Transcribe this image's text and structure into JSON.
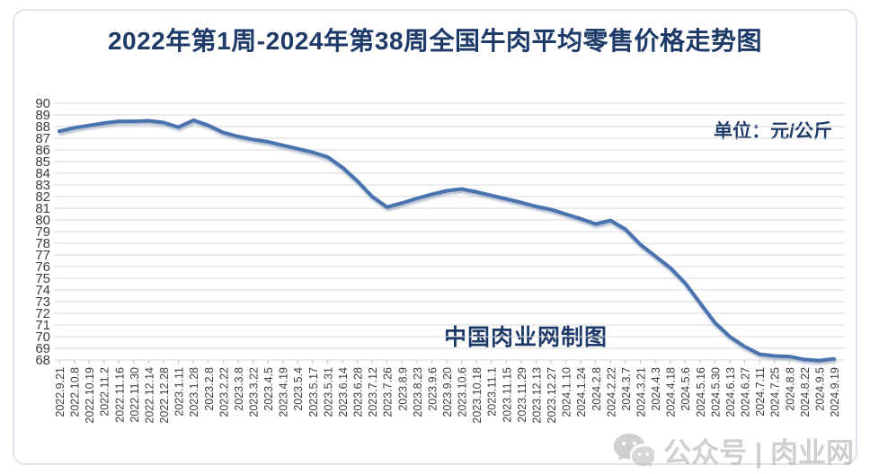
{
  "title": "2022年第1周-2024年第38周全国牛肉平均零售价格走势图",
  "unit_label": "单位：元/公斤",
  "watermark_center": "中国肉业网制图",
  "watermark_bottom": {
    "icon": "wechat-icon",
    "text": "公众号 | 肉业网"
  },
  "colors": {
    "title": "#1d3a68",
    "line": "#4a73ae",
    "grid": "#d9d9d9",
    "axis_text": "#3d3d3d",
    "watermark_gray": "#a9a9a9"
  },
  "chart_data": {
    "type": "line",
    "title": "2022年第1周-2024年第38周全国牛肉平均零售价格走势图",
    "ylabel": "元/公斤",
    "xlabel": "",
    "ylim": [
      68,
      90
    ],
    "ytick_step": 1,
    "grid": true,
    "legend": "none",
    "categories": [
      "2022.9.21",
      "2022.10.8",
      "2022.10.19",
      "2022.11.2",
      "2022.11.16",
      "2022.11.30",
      "2022.12.14",
      "2022.12.28",
      "2023.1.11",
      "2023.1.28",
      "2023.2.8",
      "2023.2.22",
      "2023.3.8",
      "2023.3.22",
      "2023.4.5",
      "2023.4.19",
      "2023.5.4",
      "2023.5.17",
      "2023.5.31",
      "2023.6.14",
      "2023.6.28",
      "2023.7.12",
      "2023.7.26",
      "2023.8.9",
      "2023.8.23",
      "2023.9.6",
      "2023.9.20",
      "2023.10.6",
      "2023.10.18",
      "2023.11.1",
      "2023.11.15",
      "2023.11.29",
      "2023.12.13",
      "2023.12.27",
      "2024.1.10",
      "2024.1.24",
      "2024.2.8",
      "2024.2.22",
      "2024.3.7",
      "2024.3.21",
      "2024.4.3",
      "2024.4.18",
      "2024.5.6",
      "2024.5.16",
      "2024.5.30",
      "2024.6.13",
      "2024.6.27",
      "2024.7.11",
      "2024.7.25",
      "2024.8.8",
      "2024.8.22",
      "2024.9.5",
      "2024.9.19"
    ],
    "values": [
      87.6,
      87.9,
      88.1,
      88.3,
      88.45,
      88.45,
      88.5,
      88.35,
      87.95,
      88.55,
      88.1,
      87.5,
      87.15,
      86.9,
      86.7,
      86.4,
      86.1,
      85.8,
      85.4,
      84.5,
      83.35,
      82.0,
      81.1,
      81.45,
      81.85,
      82.2,
      82.5,
      82.65,
      82.4,
      82.1,
      81.8,
      81.5,
      81.15,
      80.9,
      80.5,
      80.1,
      79.65,
      79.95,
      79.2,
      77.9,
      76.9,
      75.9,
      74.6,
      72.9,
      71.2,
      70.0,
      69.15,
      68.5,
      68.35,
      68.3,
      68.05,
      67.95,
      68.1
    ]
  }
}
